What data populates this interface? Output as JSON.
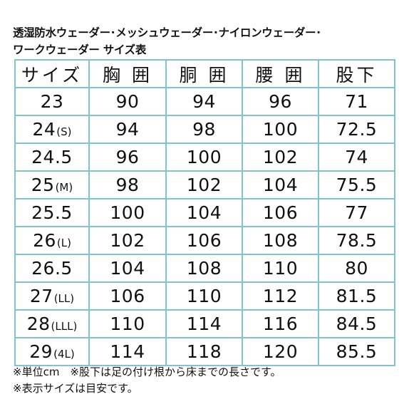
{
  "title": {
    "line1": "透湿防水ウェーダー･メッシュウェーダー･ナイロンウェーダー･",
    "line2": "ワークウェーダー サイズ表"
  },
  "table": {
    "headers": [
      "サイズ",
      "胸 囲",
      "胴 囲",
      "腰 囲",
      "股下"
    ],
    "rows": [
      {
        "size": "23",
        "note": "",
        "chest": "90",
        "waist": "94",
        "hip": "96",
        "inseam": "71"
      },
      {
        "size": "24",
        "note": "(S)",
        "chest": "94",
        "waist": "98",
        "hip": "100",
        "inseam": "72.5"
      },
      {
        "size": "24.5",
        "note": "",
        "chest": "96",
        "waist": "100",
        "hip": "102",
        "inseam": "74"
      },
      {
        "size": "25",
        "note": "(M)",
        "chest": "98",
        "waist": "102",
        "hip": "104",
        "inseam": "75.5"
      },
      {
        "size": "25.5",
        "note": "",
        "chest": "100",
        "waist": "104",
        "hip": "106",
        "inseam": "77"
      },
      {
        "size": "26",
        "note": "(L)",
        "chest": "102",
        "waist": "106",
        "hip": "108",
        "inseam": "78.5"
      },
      {
        "size": "26.5",
        "note": "",
        "chest": "104",
        "waist": "108",
        "hip": "110",
        "inseam": "80"
      },
      {
        "size": "27",
        "note": "(LL)",
        "chest": "106",
        "waist": "110",
        "hip": "112",
        "inseam": "81.5"
      },
      {
        "size": "28",
        "note": "(LLL)",
        "chest": "110",
        "waist": "114",
        "hip": "116",
        "inseam": "84.5"
      },
      {
        "size": "29",
        "note": "(4L)",
        "chest": "114",
        "waist": "118",
        "hip": "120",
        "inseam": "85.5"
      }
    ]
  },
  "notes": {
    "line1": "※単位cm　※股下は足の付け根から床までの長さです。",
    "line2": "※表示サイズは目安です。"
  },
  "colors": {
    "grid_line": "#7fc4cf",
    "text": "#111111",
    "background": "#ffffff"
  }
}
